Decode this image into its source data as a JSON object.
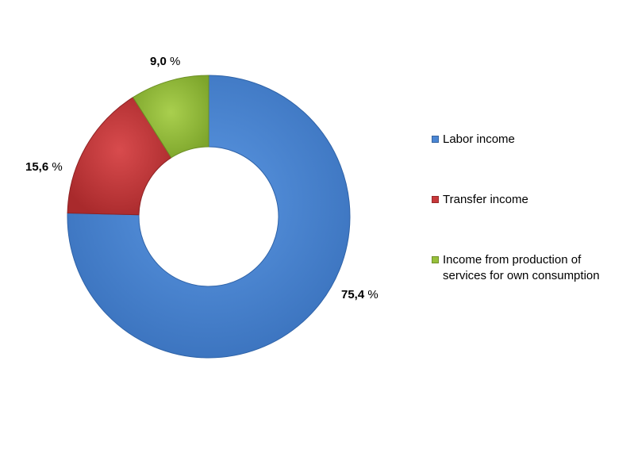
{
  "chart_data": {
    "type": "pie",
    "variant": "donut",
    "categories": [
      "Labor income",
      "Transfer income",
      "Income from production of services for own consumption"
    ],
    "values": [
      75.4,
      15.6,
      9.0
    ],
    "value_labels": [
      {
        "num": "75,4",
        "unit": "%"
      },
      {
        "num": "15,6",
        "unit": "%"
      },
      {
        "num": "9,0",
        "unit": "%"
      }
    ],
    "colors": [
      "#4a86d4",
      "#c8383a",
      "#97c03a"
    ],
    "legend_position": "right"
  }
}
